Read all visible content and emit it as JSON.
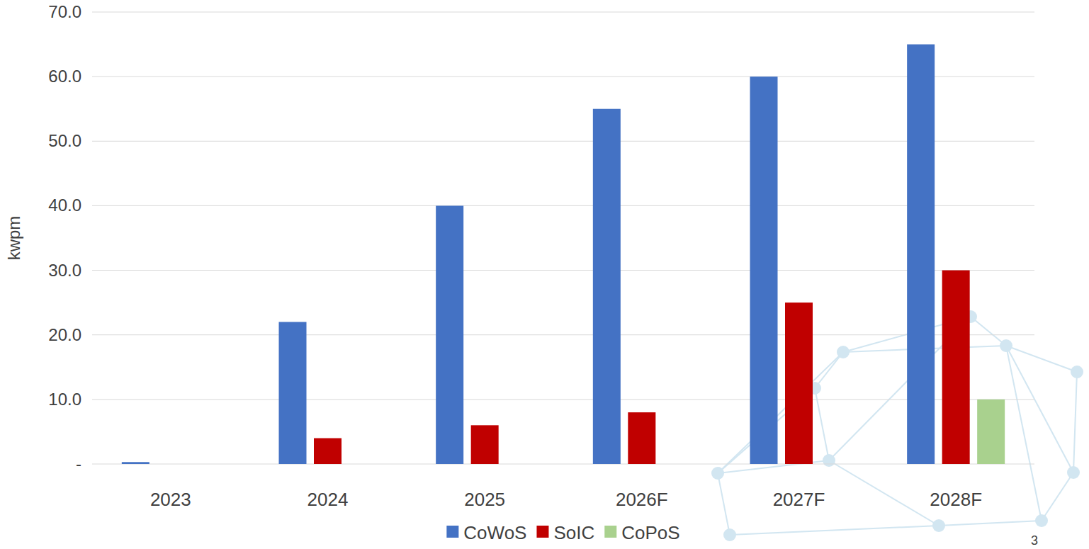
{
  "chart_data": {
    "type": "bar",
    "y_label": "kwpm",
    "categories": [
      "2023",
      "2024",
      "2025",
      "2026F",
      "2027F",
      "2028F"
    ],
    "series": [
      {
        "name": "CoWoS",
        "color": "#4472c4",
        "values": [
          0.3,
          22,
          40,
          55,
          60,
          65
        ]
      },
      {
        "name": "SoIC",
        "color": "#c00000",
        "values": [
          null,
          4,
          6,
          8,
          25,
          30
        ]
      },
      {
        "name": "CoPoS",
        "color": "#a9d18e",
        "values": [
          null,
          null,
          null,
          null,
          null,
          10
        ]
      }
    ],
    "ylim": [
      0,
      70
    ],
    "yticks": [
      {
        "value": 0,
        "label": "-"
      },
      {
        "value": 10,
        "label": "10.0"
      },
      {
        "value": 20,
        "label": "20.0"
      },
      {
        "value": 30,
        "label": "30.0"
      },
      {
        "value": 40,
        "label": "40.0"
      },
      {
        "value": 50,
        "label": "50.0"
      },
      {
        "value": 60,
        "label": "60.0"
      },
      {
        "value": 70,
        "label": "70.0"
      }
    ],
    "grid": true,
    "legend": "bottom",
    "annotations": [
      "3"
    ]
  }
}
